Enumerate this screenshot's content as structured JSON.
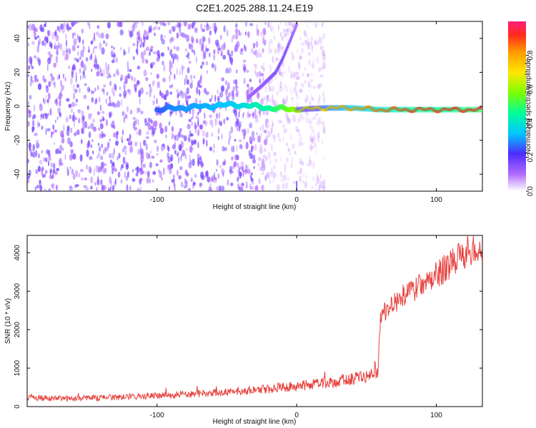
{
  "chart_data": [
    {
      "type": "heatmap",
      "title": "C2E1.2025.288.11.24.E19",
      "xlabel": "Height of straight line (km)",
      "ylabel": "Frequency (Hz)",
      "xlim": [
        -193,
        133
      ],
      "ylim": [
        -50,
        50
      ],
      "x_ticks": [
        -100,
        0,
        100
      ],
      "y_ticks": [
        -40,
        -20,
        0,
        20,
        40
      ],
      "grid": false,
      "colorbar": {
        "label": "Normalized spectral amplitude",
        "ticks": [
          0.0,
          0.2,
          0.4,
          0.6,
          0.8
        ],
        "range": [
          0,
          1
        ]
      },
      "features": [
        {
          "name": "main-ridge",
          "description": "dominant signal near 0 Hz",
          "x": [
            -100,
            -85,
            -65,
            -45,
            -30,
            -20,
            0,
            20,
            40,
            60,
            80,
            100,
            133
          ],
          "y": [
            -2,
            -1,
            0,
            1,
            0,
            -1,
            -2,
            -1,
            -1,
            -2,
            -2,
            -2,
            -2
          ],
          "amplitude": [
            0.25,
            0.3,
            0.32,
            0.35,
            0.42,
            0.45,
            0.6,
            0.72,
            0.8,
            0.85,
            0.9,
            0.9,
            0.95
          ]
        },
        {
          "name": "rising-branch",
          "description": "curved ridge from about -30 km toward positive frequencies",
          "x": [
            -35,
            -25,
            -15,
            -10,
            -5,
            0
          ],
          "y": [
            5,
            12,
            20,
            28,
            38,
            48
          ],
          "amplitude": [
            0.12,
            0.14,
            0.16,
            0.18,
            0.16,
            0.12
          ]
        }
      ]
    },
    {
      "type": "line",
      "title": "",
      "xlabel": "Height of straight line (km)",
      "ylabel": "SNR (10 * v/v)",
      "xlim": [
        -193,
        133
      ],
      "ylim": [
        0,
        4450
      ],
      "x_ticks": [
        -100,
        0,
        100
      ],
      "y_ticks": [
        0,
        1000,
        2000,
        3000,
        4000
      ],
      "grid": false,
      "series": [
        {
          "name": "SNR",
          "color": "#e53935",
          "x": [
            -193,
            -180,
            -160,
            -140,
            -120,
            -100,
            -80,
            -60,
            -40,
            -20,
            0,
            20,
            40,
            55,
            58,
            60,
            65,
            70,
            80,
            90,
            100,
            110,
            120,
            133
          ],
          "values": [
            250,
            220,
            210,
            230,
            250,
            280,
            320,
            350,
            400,
            460,
            530,
            620,
            720,
            820,
            900,
            2200,
            2600,
            2700,
            2950,
            3200,
            3400,
            3700,
            3950,
            4150
          ]
        }
      ]
    }
  ],
  "colors": {
    "snr_line": "#e53935",
    "main_ridge_low": "#7b1cf2",
    "main_ridge_high": "#ff1f4f",
    "noise_speckle": "#b58cf8"
  }
}
